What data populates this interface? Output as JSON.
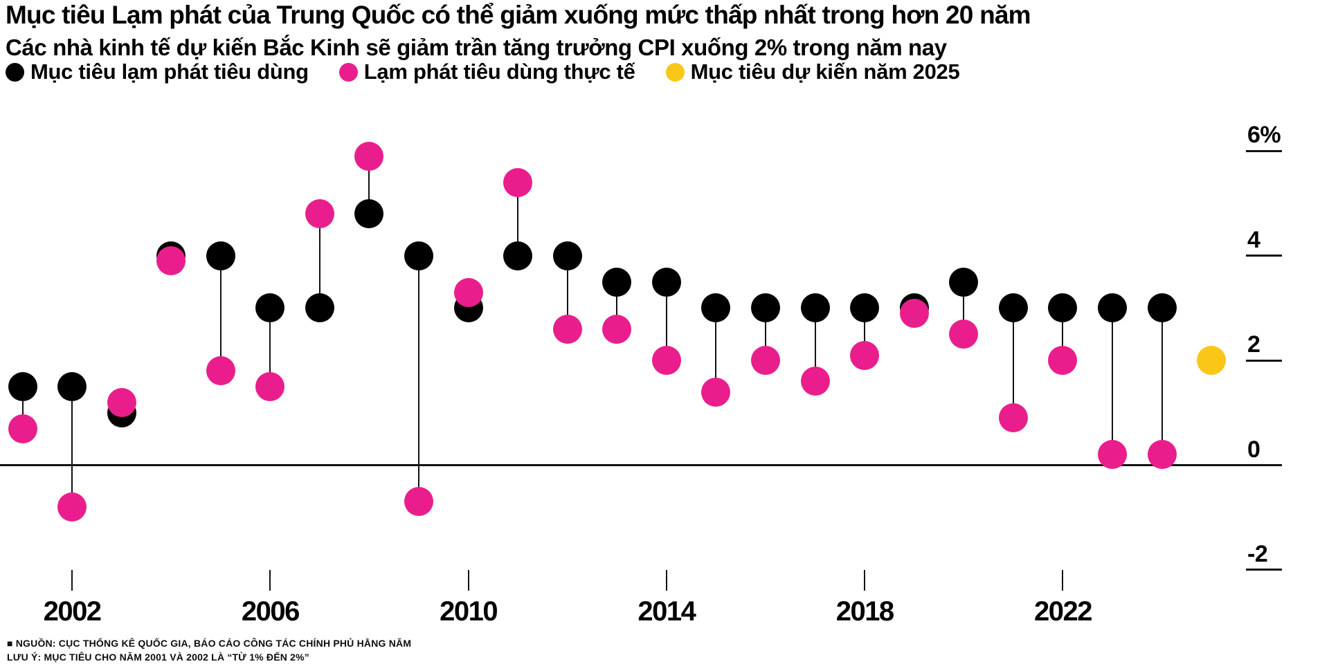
{
  "header": {
    "title": "Mục tiêu Lạm phát của Trung Quốc có thể giảm xuống mức thấp nhất trong hơn 20 năm",
    "subtitle": "Các nhà kinh tế dự kiến Bắc Kinh sẽ giảm trần tăng trưởng CPI xuống 2% trong năm nay"
  },
  "legend": [
    {
      "key": "target",
      "label": "Mục tiêu lạm phát tiêu dùng",
      "color": "#000000"
    },
    {
      "key": "actual",
      "label": "Lạm phát tiêu dùng thực tế",
      "color": "#E91E8C"
    },
    {
      "key": "projected",
      "label": "Mục tiêu dự kiến năm 2025",
      "color": "#FAC617"
    }
  ],
  "colors": {
    "target": "#000000",
    "actual": "#E91E8C",
    "projected": "#FAC617",
    "axis": "#111111"
  },
  "chart_data": {
    "type": "dumbbell-scatter",
    "title": "Mục tiêu Lạm phát của Trung Quốc có thể giảm xuống mức thấp nhất trong hơn 20 năm",
    "subtitle": "Các nhà kinh tế dự kiến Bắc Kinh sẽ giảm trần tăng trưởng CPI xuống 2% trong năm nay",
    "unit": "%",
    "ylim": [
      -2,
      6
    ],
    "y_ticks": [
      {
        "label": "6%",
        "value": 6
      },
      {
        "label": "4",
        "value": 4
      },
      {
        "label": "2",
        "value": 2
      },
      {
        "label": "0",
        "value": 0
      },
      {
        "label": "-2",
        "value": -2
      }
    ],
    "x_ticks": [
      2002,
      2006,
      2010,
      2014,
      2018,
      2022
    ],
    "x_range": [
      2001,
      2025
    ],
    "grid": "none",
    "legend_position": "top",
    "categories": [
      2001,
      2002,
      2003,
      2004,
      2005,
      2006,
      2007,
      2008,
      2009,
      2010,
      2011,
      2012,
      2013,
      2014,
      2015,
      2016,
      2017,
      2018,
      2019,
      2020,
      2021,
      2022,
      2023,
      2024
    ],
    "series": [
      {
        "name": "Mục tiêu lạm phát tiêu dùng",
        "values": [
          1.5,
          1.5,
          1.0,
          4.0,
          4.0,
          3.0,
          3.0,
          4.8,
          4.0,
          3.0,
          4.0,
          4.0,
          3.5,
          3.5,
          3.0,
          3.0,
          3.0,
          3.0,
          3.0,
          3.5,
          3.0,
          3.0,
          3.0,
          3.0
        ]
      },
      {
        "name": "Lạm phát tiêu dùng thực tế",
        "values": [
          0.7,
          -0.8,
          1.2,
          3.9,
          1.8,
          1.5,
          4.8,
          5.9,
          -0.7,
          3.3,
          5.4,
          2.6,
          2.6,
          2.0,
          1.4,
          2.0,
          1.6,
          2.1,
          2.9,
          2.5,
          0.9,
          2.0,
          0.2,
          0.2
        ]
      }
    ],
    "projected": {
      "year": 2025,
      "value": 2.0
    }
  },
  "footer": {
    "source": "■ NGUỒN: CỤC THỐNG KÊ QUỐC GIA, BÁO CÁO CÔNG TÁC CHÍNH PHỦ HẰNG NĂM",
    "note": "LƯU Ý: MỤC TIÊU CHO NĂM 2001 VÀ 2002 LÀ “TỪ 1% ĐẾN 2%”"
  }
}
